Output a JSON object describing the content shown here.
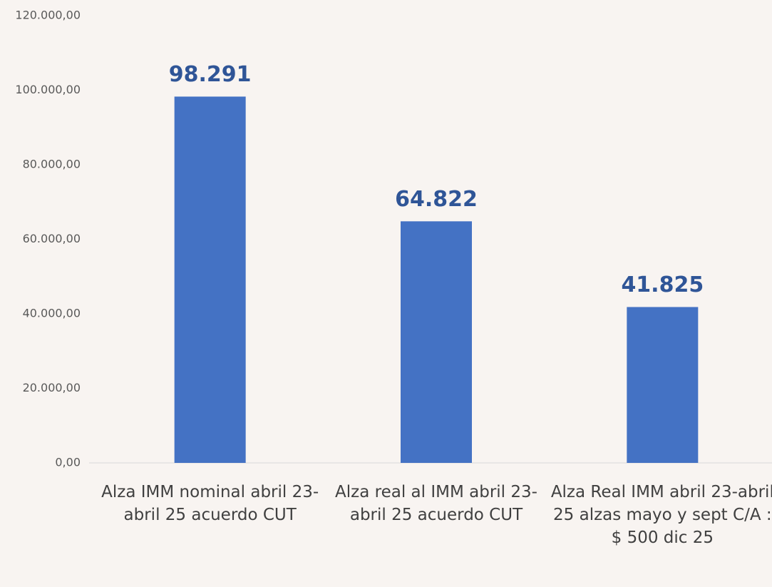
{
  "chart_data": {
    "type": "bar",
    "categories": [
      "Alza IMM nominal abril 23-abril 25 acuerdo CUT",
      "Alza real al IMM  abril 23-abril 25 acuerdo CUT",
      "Alza Real IMM  abril 23-abril 25 alzas mayo y sept C/A : $ 500 dic 25"
    ],
    "values": [
      98291,
      64822,
      41825
    ],
    "value_labels": [
      "98.291",
      "64.822",
      "41.825"
    ],
    "color": "#4472c4",
    "ylim": [
      0,
      120000
    ],
    "yticks": [
      {
        "value": 0,
        "label": "0,00"
      },
      {
        "value": 20000,
        "label": "20.000,00"
      },
      {
        "value": 40000,
        "label": "40.000,00"
      },
      {
        "value": 60000,
        "label": "60.000,00"
      },
      {
        "value": 80000,
        "label": "80.000,00"
      },
      {
        "value": 100000,
        "label": "100.000,00"
      },
      {
        "value": 120000,
        "label": "120.000,00"
      }
    ],
    "grid": false
  }
}
